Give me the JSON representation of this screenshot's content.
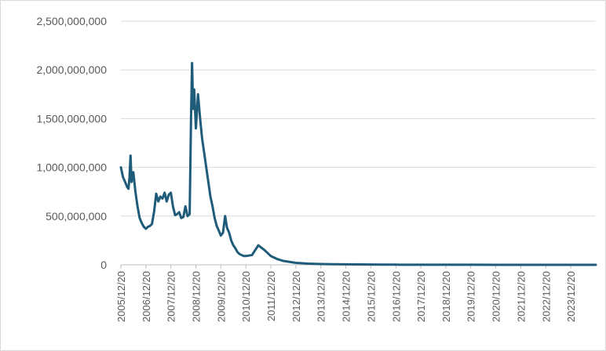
{
  "chart_data": {
    "type": "line",
    "title": "",
    "xlabel": "",
    "ylabel": "",
    "ylim": [
      0,
      2500000000
    ],
    "y_ticks": [
      0,
      500000000,
      1000000000,
      1500000000,
      2000000000,
      2500000000
    ],
    "y_tick_labels": [
      "0",
      "500,000,000",
      "1,000,000,000",
      "1,500,000,000",
      "2,000,000,000",
      "2,500,000,000"
    ],
    "x_tick_labels": [
      "2005/12/20",
      "2006/12/20",
      "2007/12/20",
      "2008/12/20",
      "2009/12/20",
      "2010/12/20",
      "2011/12/20",
      "2012/12/20",
      "2013/12/20",
      "2014/12/20",
      "2015/12/20",
      "2016/12/20",
      "2017/12/20",
      "2018/12/20",
      "2019/12/20",
      "2020/12/20",
      "2021/12/20",
      "2022/12/20",
      "2023/12/20"
    ],
    "xlim": [
      "2005/12/20",
      "2024/12/20"
    ],
    "grid": "horizontal",
    "legend": "none",
    "color": "#1f5c7a",
    "series": [
      {
        "x": [
          "2005/12/20",
          "2006/01/20",
          "2006/02/20",
          "2006/03/20",
          "2006/04/10",
          "2006/04/25",
          "2006/05/10",
          "2006/05/25",
          "2006/06/20",
          "2006/07/20",
          "2006/08/20",
          "2006/09/20",
          "2006/10/20",
          "2006/11/20",
          "2006/12/20",
          "2007/01/20",
          "2007/02/20",
          "2007/03/20",
          "2007/04/20",
          "2007/05/20",
          "2007/06/20",
          "2007/07/20",
          "2007/08/20",
          "2007/09/20",
          "2007/10/20",
          "2007/11/20",
          "2007/12/20",
          "2008/01/20",
          "2008/02/20",
          "2008/03/20",
          "2008/04/20",
          "2008/05/20",
          "2008/06/20",
          "2008/07/20",
          "2008/08/20",
          "2008/09/20",
          "2008/10/10",
          "2008/10/25",
          "2008/11/10",
          "2008/11/25",
          "2008/12/20",
          "2009/01/20",
          "2009/02/20",
          "2009/03/20",
          "2009/04/20",
          "2009/05/20",
          "2009/06/20",
          "2009/07/20",
          "2009/08/20",
          "2009/09/20",
          "2009/10/20",
          "2009/11/20",
          "2009/12/20",
          "2010/01/20",
          "2010/02/20",
          "2010/03/20",
          "2010/04/20",
          "2010/05/20",
          "2010/06/20",
          "2010/07/20",
          "2010/08/20",
          "2010/09/20",
          "2010/10/20",
          "2010/11/20",
          "2010/12/20",
          "2011/03/20",
          "2011/06/20",
          "2011/09/20",
          "2011/12/20",
          "2012/03/20",
          "2012/06/20",
          "2012/09/20",
          "2012/12/20",
          "2013/06/20",
          "2013/12/20",
          "2014/06/20",
          "2014/12/20",
          "2015/06/20",
          "2015/12/20",
          "2016/06/20",
          "2016/12/20",
          "2017/12/20",
          "2018/12/20",
          "2019/12/20",
          "2020/12/20",
          "2021/12/20",
          "2022/12/20",
          "2023/12/20",
          "2024/12/20"
        ],
        "y": [
          1000000000,
          900000000,
          850000000,
          800000000,
          780000000,
          900000000,
          1120000000,
          850000000,
          950000000,
          750000000,
          600000000,
          480000000,
          430000000,
          390000000,
          370000000,
          390000000,
          400000000,
          420000000,
          550000000,
          730000000,
          650000000,
          700000000,
          680000000,
          740000000,
          650000000,
          720000000,
          740000000,
          600000000,
          510000000,
          520000000,
          540000000,
          480000000,
          490000000,
          600000000,
          500000000,
          520000000,
          1500000000,
          2070000000,
          1600000000,
          1800000000,
          1400000000,
          1750000000,
          1500000000,
          1300000000,
          1150000000,
          1000000000,
          850000000,
          700000000,
          600000000,
          480000000,
          400000000,
          350000000,
          300000000,
          330000000,
          500000000,
          380000000,
          330000000,
          250000000,
          200000000,
          170000000,
          130000000,
          110000000,
          100000000,
          90000000,
          90000000,
          100000000,
          200000000,
          150000000,
          90000000,
          60000000,
          40000000,
          30000000,
          20000000,
          12000000,
          8000000,
          6000000,
          5000000,
          4000000,
          3000000,
          2000000,
          1500000,
          1000000,
          800000,
          600000,
          500000,
          400000,
          300000,
          300000,
          300000
        ]
      }
    ]
  }
}
